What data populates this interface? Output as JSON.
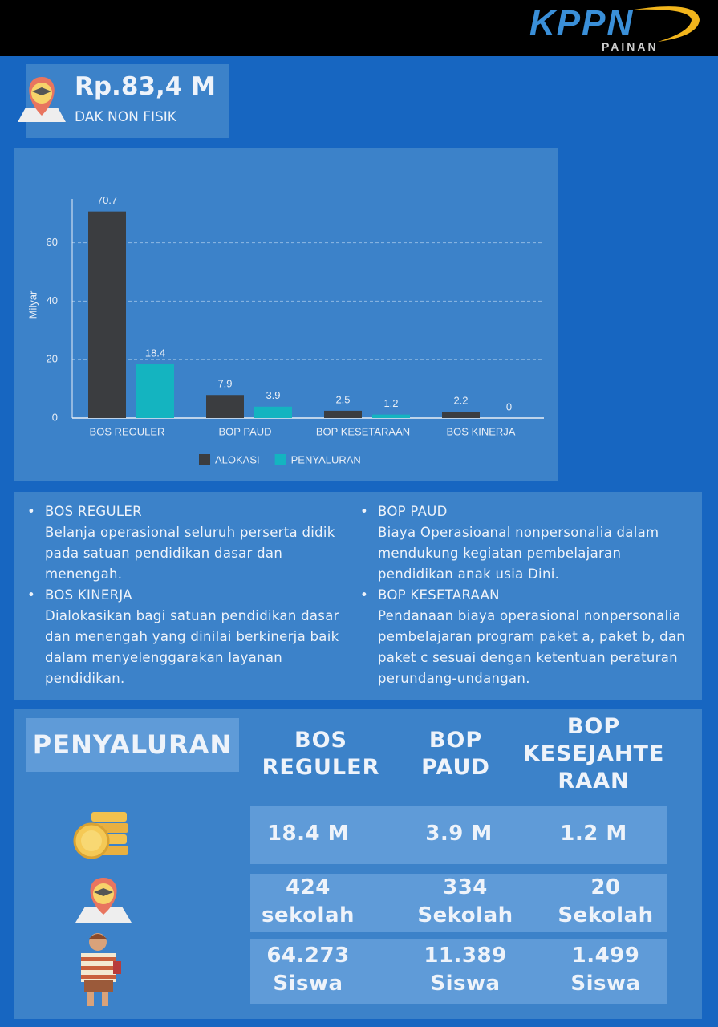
{
  "header": {
    "logo": "KPPN",
    "logo_subtitle": "PAINAN"
  },
  "summary": {
    "amount": "Rp.83,4 M",
    "label": "DAK NON FISIK"
  },
  "chart_data": {
    "type": "bar",
    "ylabel": "Milyar",
    "categories": [
      "BOS REGULER",
      "BOP PAUD",
      "BOP KESETARAAN",
      "BOS KINERJA"
    ],
    "series": [
      {
        "name": "ALOKASI",
        "color": "#3b3d40",
        "values": [
          70.7,
          7.9,
          2.5,
          2.2
        ]
      },
      {
        "name": "PENYALURAN",
        "color": "#14b4c0",
        "values": [
          18.4,
          3.9,
          1.2,
          0
        ]
      }
    ],
    "ylim": [
      0,
      75
    ],
    "yticks": [
      0,
      20,
      40,
      60
    ],
    "grid": true,
    "legend": "bottom"
  },
  "descriptions": {
    "items": [
      {
        "title": "BOS REGULER",
        "text": "Belanja operasional seluruh perserta didik pada satuan pendidikan dasar dan menengah."
      },
      {
        "title": "BOS KINERJA",
        "text": "Dialokasikan bagi satuan pendidikan dasar dan menengah yang dinilai berkinerja baik dalam menyelenggarakan layanan pendidikan."
      },
      {
        "title": "BOP PAUD",
        "text": "Biaya Operasioanal nonpersonalia dalam mendukung kegiatan pembelajaran pendidikan anak usia Dini."
      },
      {
        "title": "BOP KESETARAAN",
        "text": "Pendanaan biaya operasional nonpersonalia pembelajaran program paket a, paket b, dan paket c sesuai dengan ketentuan peraturan perundang-undangan."
      }
    ]
  },
  "table": {
    "title": "PENYALURAN",
    "columns": [
      "BOS\nREGULER",
      "BOP\nPAUD",
      "BOP\nKESEJAHTE\nRAAN"
    ],
    "rows": [
      [
        "18.4 M",
        "3.9 M",
        "1.2 M"
      ],
      [
        "424\nsekolah",
        "334\nSekolah",
        "20\nSekolah"
      ],
      [
        "64.273\nSiswa",
        "11.389\nSiswa",
        "1.499\nSiswa"
      ]
    ]
  }
}
